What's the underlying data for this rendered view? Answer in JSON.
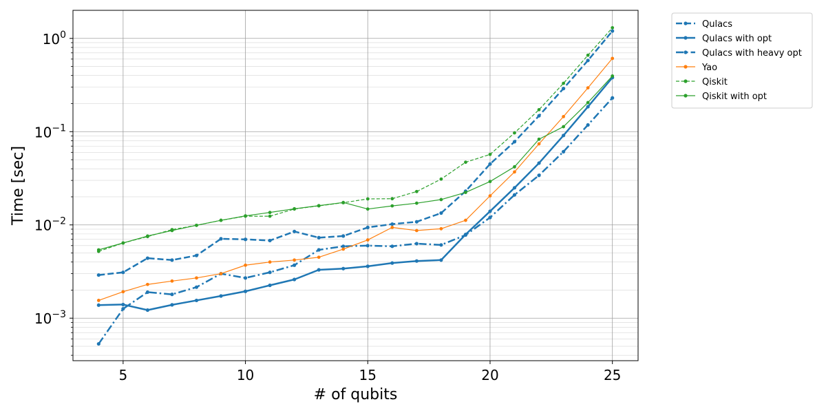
{
  "chart_data": {
    "type": "line",
    "xlabel": "# of qubits",
    "ylabel": "Time [sec]",
    "xlim": [
      2.95,
      26.05
    ],
    "ylim": [
      0.00035,
      2.0
    ],
    "yscale": "log",
    "xticks": [
      5,
      10,
      15,
      20,
      25
    ],
    "yticks": [
      {
        "value": 0.001,
        "base": "10",
        "exp": "−3"
      },
      {
        "value": 0.01,
        "base": "10",
        "exp": "−2"
      },
      {
        "value": 0.1,
        "base": "10",
        "exp": "−1"
      },
      {
        "value": 1.0,
        "base": "10",
        "exp": "0"
      }
    ],
    "grid": true,
    "legend_position": "outside-top-right",
    "x": [
      4,
      5,
      6,
      7,
      8,
      9,
      10,
      11,
      12,
      13,
      14,
      15,
      16,
      17,
      18,
      19,
      20,
      21,
      22,
      23,
      24,
      25
    ],
    "series": [
      {
        "name": "Qulacs",
        "color": "#1f77b4",
        "linestyle": "dashed",
        "linewidth": 2.5,
        "values": [
          0.0029,
          0.0031,
          0.0044,
          0.0042,
          0.0047,
          0.0071,
          0.007,
          0.0068,
          0.0085,
          0.0073,
          0.0076,
          0.0094,
          0.0102,
          0.0108,
          0.0134,
          0.023,
          0.045,
          0.078,
          0.148,
          0.29,
          0.58,
          1.2
        ]
      },
      {
        "name": "Qulacs with opt",
        "color": "#1f77b4",
        "linestyle": "solid",
        "linewidth": 2.5,
        "values": [
          0.00138,
          0.0014,
          0.00122,
          0.00139,
          0.00155,
          0.00173,
          0.00194,
          0.00225,
          0.0026,
          0.0033,
          0.0034,
          0.0036,
          0.0039,
          0.0041,
          0.0042,
          0.0079,
          0.014,
          0.025,
          0.046,
          0.091,
          0.185,
          0.38
        ]
      },
      {
        "name": "Qulacs with heavy opt",
        "color": "#1f77b4",
        "linestyle": "dashdot",
        "linewidth": 2.5,
        "values": [
          0.00053,
          0.00126,
          0.0019,
          0.0018,
          0.00215,
          0.003,
          0.0027,
          0.0031,
          0.0037,
          0.0054,
          0.0059,
          0.006,
          0.0059,
          0.0063,
          0.0061,
          0.0078,
          0.012,
          0.021,
          0.034,
          0.061,
          0.118,
          0.23
        ]
      },
      {
        "name": "Yao",
        "color": "#ff7f0e",
        "linestyle": "solid",
        "linewidth": 1.2,
        "values": [
          0.00155,
          0.00192,
          0.0023,
          0.0025,
          0.0027,
          0.003,
          0.0037,
          0.004,
          0.0042,
          0.0045,
          0.0055,
          0.0069,
          0.0094,
          0.0087,
          0.0091,
          0.0112,
          0.0205,
          0.037,
          0.074,
          0.145,
          0.295,
          0.61
        ]
      },
      {
        "name": "Qiskit",
        "color": "#2ca02c",
        "linestyle": "dashed",
        "linewidth": 1.2,
        "values": [
          0.0052,
          0.0064,
          0.0075,
          0.0089,
          0.0099,
          0.0112,
          0.0124,
          0.0124,
          0.0148,
          0.016,
          0.0173,
          0.019,
          0.0191,
          0.0228,
          0.031,
          0.047,
          0.057,
          0.097,
          0.172,
          0.33,
          0.66,
          1.3
        ]
      },
      {
        "name": "Qiskit with opt",
        "color": "#2ca02c",
        "linestyle": "solid",
        "linewidth": 1.2,
        "values": [
          0.0054,
          0.0064,
          0.0076,
          0.0087,
          0.0099,
          0.0112,
          0.0125,
          0.0136,
          0.0149,
          0.0161,
          0.0174,
          0.0148,
          0.016,
          0.0171,
          0.0187,
          0.0223,
          0.0292,
          0.042,
          0.083,
          0.113,
          0.205,
          0.395
        ]
      }
    ]
  }
}
